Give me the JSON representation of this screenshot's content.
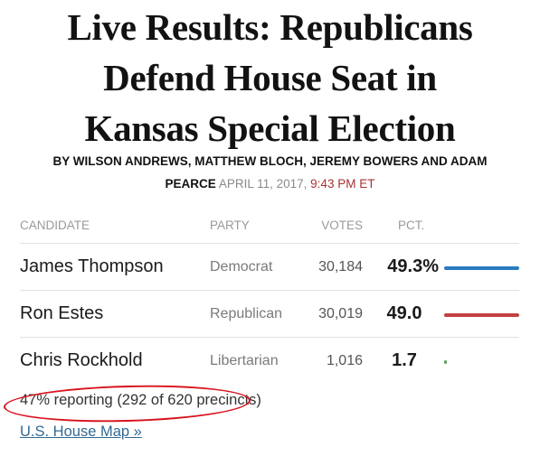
{
  "headline": {
    "line1": "Live Results: Republicans",
    "line2": "Defend House Seat in",
    "line3": "Kansas Special Election"
  },
  "byline": {
    "line1": "BY WILSON ANDREWS, MATTHEW BLOCH, JEREMY BOWERS AND ADAM",
    "line2_names": "PEARCE",
    "date": "APRIL 11, 2017,",
    "time": "9:43 PM ET"
  },
  "table": {
    "headers": {
      "candidate": "CANDIDATE",
      "party": "PARTY",
      "votes": "VOTES",
      "pct": "PCT."
    },
    "rows": [
      {
        "candidate": "James Thompson",
        "party": "Democrat",
        "votes": "30,184",
        "pct": "49.3%",
        "share": 0.493,
        "color": "#2b7bbf"
      },
      {
        "candidate": "Ron Estes",
        "party": "Republican",
        "votes": "30,019",
        "pct": "49.0",
        "share": 0.49,
        "color": "#c44040"
      },
      {
        "candidate": "Chris Rockhold",
        "party": "Libertarian",
        "votes": "1,016",
        "pct": "1.7",
        "share": 0.017,
        "color": "#5aa05a"
      }
    ]
  },
  "reporting": "47% reporting (292 of 620 precincts)",
  "links": {
    "map": "U.S. House Map »"
  },
  "colors": {
    "link": "#326891",
    "highlight_oval": "#d8121c",
    "time": "#a83232"
  }
}
